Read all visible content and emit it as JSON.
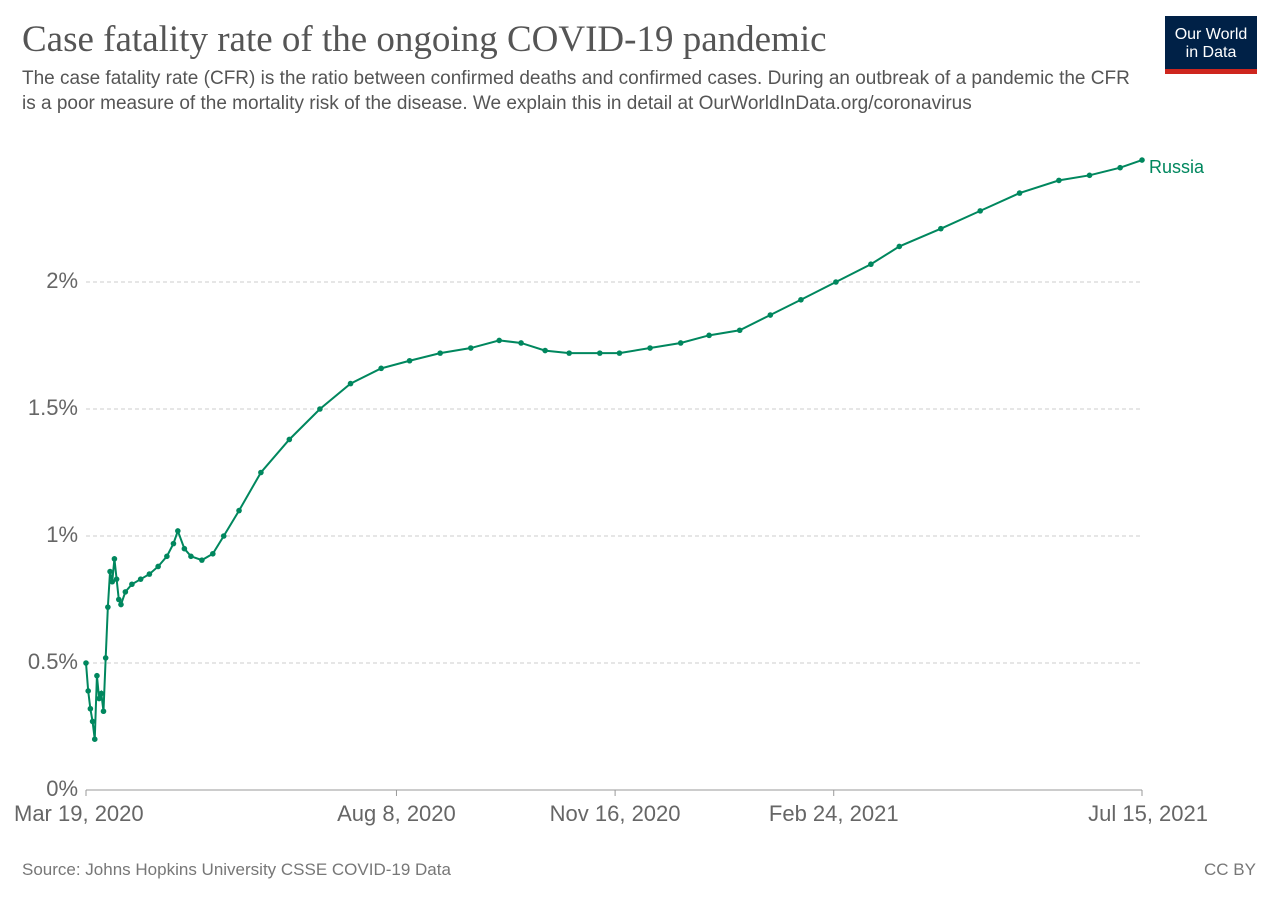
{
  "chart_data": {
    "type": "line",
    "title": "Case fatality rate of the ongoing COVID-19 pandemic",
    "subtitle": "The case fatality rate (CFR) is the ratio between confirmed deaths and confirmed cases. During an outbreak of a pandemic the CFR is a poor measure of the mortality risk of the disease. We explain this in detail at OurWorldInData.org/coronavirus",
    "logo": [
      "Our World",
      "in Data"
    ],
    "source": "Source: Johns Hopkins University CSSE COVID-19 Data",
    "license": "CC BY",
    "x": [
      "2020-03-19",
      "2020-03-20",
      "2020-03-21",
      "2020-03-22",
      "2020-03-23",
      "2020-03-24",
      "2020-03-25",
      "2020-03-26",
      "2020-03-27",
      "2020-03-28",
      "2020-03-29",
      "2020-03-30",
      "2020-03-31",
      "2020-04-01",
      "2020-04-02",
      "2020-04-03",
      "2020-04-04",
      "2020-04-06",
      "2020-04-09",
      "2020-04-13",
      "2020-04-17",
      "2020-04-21",
      "2020-04-25",
      "2020-04-28",
      "2020-04-30",
      "2020-05-03",
      "2020-05-06",
      "2020-05-11",
      "2020-05-16",
      "2020-05-21",
      "2020-05-28",
      "2020-06-07",
      "2020-06-20",
      "2020-07-04",
      "2020-07-18",
      "2020-08-01",
      "2020-08-14",
      "2020-08-28",
      "2020-09-11",
      "2020-09-24",
      "2020-10-04",
      "2020-10-15",
      "2020-10-26",
      "2020-11-09",
      "2020-11-18",
      "2020-12-02",
      "2020-12-16",
      "2020-12-29",
      "2021-01-12",
      "2021-01-26",
      "2021-02-09",
      "2021-02-25",
      "2021-03-13",
      "2021-03-26",
      "2021-04-14",
      "2021-05-02",
      "2021-05-20",
      "2021-06-07",
      "2021-06-21",
      "2021-07-05",
      "2021-07-15"
    ],
    "series": [
      {
        "name": "Russia",
        "color": "#00875e",
        "values": [
          0.5,
          0.39,
          0.32,
          0.27,
          0.2,
          0.45,
          0.36,
          0.38,
          0.31,
          0.52,
          0.72,
          0.86,
          0.82,
          0.91,
          0.83,
          0.75,
          0.73,
          0.78,
          0.81,
          0.83,
          0.85,
          0.88,
          0.92,
          0.97,
          1.02,
          0.95,
          0.92,
          0.905,
          0.93,
          1.0,
          1.1,
          1.25,
          1.38,
          1.5,
          1.6,
          1.66,
          1.69,
          1.72,
          1.74,
          1.77,
          1.76,
          1.73,
          1.72,
          1.72,
          1.72,
          1.74,
          1.76,
          1.79,
          1.81,
          1.87,
          1.93,
          2.0,
          2.07,
          2.14,
          2.21,
          2.28,
          2.35,
          2.4,
          2.42,
          2.45,
          2.48
        ]
      }
    ],
    "xlim": [
      "2020-03-19",
      "2021-07-15"
    ],
    "xticks": [
      {
        "value": "2020-03-19",
        "label": "Mar 19, 2020"
      },
      {
        "value": "2020-08-08",
        "label": "Aug 8, 2020"
      },
      {
        "value": "2020-11-16",
        "label": "Nov 16, 2020"
      },
      {
        "value": "2021-02-24",
        "label": "Feb 24, 2021"
      },
      {
        "value": "2021-07-15",
        "label": "Jul 15, 2021"
      }
    ],
    "ylim": [
      0,
      2.5
    ],
    "yticks": [
      {
        "value": 0,
        "label": "0%"
      },
      {
        "value": 0.5,
        "label": "0.5%"
      },
      {
        "value": 1,
        "label": "1%"
      },
      {
        "value": 1.5,
        "label": "1.5%"
      },
      {
        "value": 2,
        "label": "2%"
      }
    ],
    "grid": true
  }
}
